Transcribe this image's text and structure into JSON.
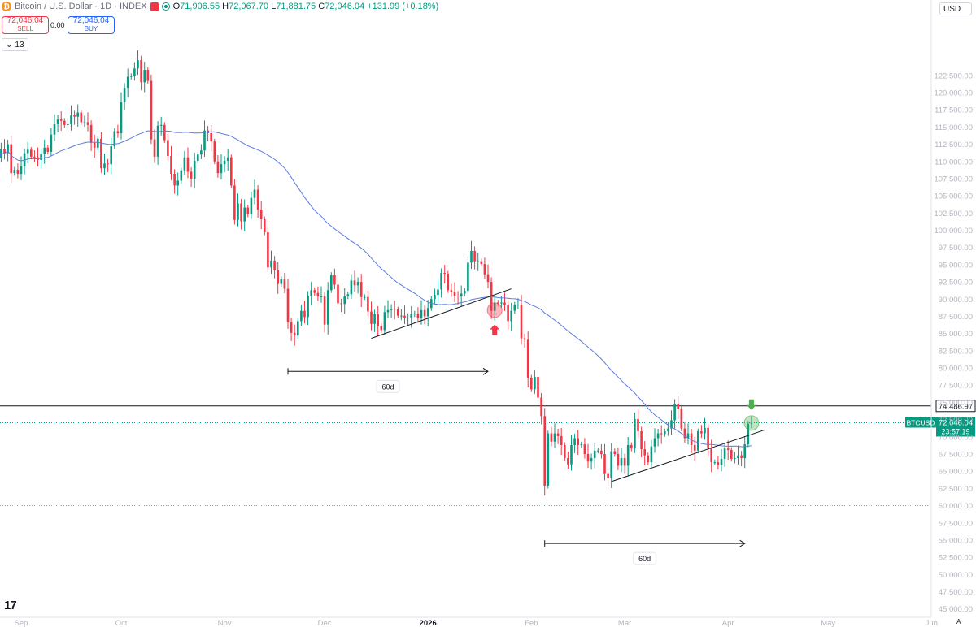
{
  "header": {
    "symbol": "Bitcoin / U.S. Dollar · 1D · INDEX",
    "open_label": "O",
    "open": "71,906.55",
    "high_label": "H",
    "high": "72,067.70",
    "low_label": "L",
    "low": "71,881.75",
    "close_label": "C",
    "close": "72,046.04",
    "change": "+131.99 (+0.18%)",
    "coin_icon": "bitcoin-icon"
  },
  "trade": {
    "sell_price": "72,046.04",
    "sell_label": "SELL",
    "spread": "0.00",
    "buy_price": "72,046.04",
    "buy_label": "BUY"
  },
  "indicator_count": "13",
  "currency": "USD",
  "auto_label": "A",
  "colors": {
    "up": "#089981",
    "down": "#f23645",
    "ma": "#5b7be0",
    "accent": "#2962ff"
  },
  "chart_data": {
    "type": "candlestick",
    "x_ticks": [
      "Sep",
      "Oct",
      "Nov",
      "Dec",
      "2026",
      "Feb",
      "Mar",
      "Apr",
      "May",
      "Jun"
    ],
    "y_ticks": [
      "45,000.00",
      "47,500.00",
      "50,000.00",
      "52,500.00",
      "55,000.00",
      "57,500.00",
      "60,000.00",
      "62,500.00",
      "65,000.00",
      "67,500.00",
      "70,000.00",
      "72,500.00",
      "75,000.00",
      "77,500.00",
      "80,000.00",
      "82,500.00",
      "85,000.00",
      "87,500.00",
      "90,000.00",
      "92,500.00",
      "95,000.00",
      "97,500.00",
      "100,000.00",
      "102,500.00",
      "105,000.00",
      "107,500.00",
      "110,000.00",
      "112,500.00",
      "115,000.00",
      "117,500.00",
      "120,000.00",
      "122,500.00"
    ],
    "ylim": [
      43500,
      126000
    ],
    "close_series": [
      [
        "2025-08-25",
        110500
      ],
      [
        "2025-08-26",
        111800
      ],
      [
        "2025-08-27",
        111200
      ],
      [
        "2025-08-28",
        112500
      ],
      [
        "2025-08-29",
        108300
      ],
      [
        "2025-08-30",
        108800
      ],
      [
        "2025-08-31",
        108200
      ],
      [
        "2025-09-01",
        109300
      ],
      [
        "2025-09-02",
        111200
      ],
      [
        "2025-09-03",
        111700
      ],
      [
        "2025-09-04",
        110700
      ],
      [
        "2025-09-05",
        110600
      ],
      [
        "2025-09-06",
        110200
      ],
      [
        "2025-09-07",
        111100
      ],
      [
        "2025-09-08",
        112000
      ],
      [
        "2025-09-09",
        111400
      ],
      [
        "2025-09-10",
        113900
      ],
      [
        "2025-09-11",
        115400
      ],
      [
        "2025-09-12",
        116100
      ],
      [
        "2025-09-13",
        115900
      ],
      [
        "2025-09-14",
        115300
      ],
      [
        "2025-09-15",
        115400
      ],
      [
        "2025-09-16",
        116700
      ],
      [
        "2025-09-17",
        116500
      ],
      [
        "2025-09-18",
        117100
      ],
      [
        "2025-09-19",
        115700
      ],
      [
        "2025-09-20",
        115700
      ],
      [
        "2025-09-21",
        115300
      ],
      [
        "2025-09-22",
        112700
      ],
      [
        "2025-09-23",
        112000
      ],
      [
        "2025-09-24",
        113300
      ],
      [
        "2025-09-25",
        109000
      ],
      [
        "2025-09-26",
        109700
      ],
      [
        "2025-09-27",
        109600
      ],
      [
        "2025-09-28",
        112200
      ],
      [
        "2025-09-29",
        114400
      ],
      [
        "2025-09-30",
        114100
      ],
      [
        "2025-10-01",
        118600
      ],
      [
        "2025-10-02",
        120700
      ],
      [
        "2025-10-03",
        122300
      ],
      [
        "2025-10-04",
        122400
      ],
      [
        "2025-10-05",
        123500
      ],
      [
        "2025-10-06",
        124700
      ],
      [
        "2025-10-07",
        121500
      ],
      [
        "2025-10-08",
        123300
      ],
      [
        "2025-10-09",
        121700
      ],
      [
        "2025-10-10",
        113200
      ],
      [
        "2025-10-11",
        110700
      ],
      [
        "2025-10-12",
        115200
      ],
      [
        "2025-10-13",
        115300
      ],
      [
        "2025-10-14",
        113100
      ],
      [
        "2025-10-15",
        110800
      ],
      [
        "2025-10-16",
        108200
      ],
      [
        "2025-10-17",
        106500
      ],
      [
        "2025-10-18",
        107200
      ],
      [
        "2025-10-19",
        108700
      ],
      [
        "2025-10-20",
        110600
      ],
      [
        "2025-10-21",
        108500
      ],
      [
        "2025-10-22",
        107500
      ],
      [
        "2025-10-23",
        110100
      ],
      [
        "2025-10-24",
        111000
      ],
      [
        "2025-10-25",
        111600
      ],
      [
        "2025-10-26",
        114500
      ],
      [
        "2025-10-27",
        114100
      ],
      [
        "2025-10-28",
        112900
      ],
      [
        "2025-10-29",
        110000
      ],
      [
        "2025-10-30",
        108300
      ],
      [
        "2025-10-31",
        109600
      ],
      [
        "2025-11-01",
        110100
      ],
      [
        "2025-11-02",
        110600
      ],
      [
        "2025-11-03",
        106500
      ],
      [
        "2025-11-04",
        101500
      ],
      [
        "2025-11-05",
        103900
      ],
      [
        "2025-11-06",
        101300
      ],
      [
        "2025-11-07",
        103300
      ],
      [
        "2025-11-08",
        102300
      ],
      [
        "2025-11-09",
        104700
      ],
      [
        "2025-11-10",
        105900
      ],
      [
        "2025-11-11",
        103000
      ],
      [
        "2025-11-12",
        101600
      ],
      [
        "2025-11-13",
        99700
      ],
      [
        "2025-11-14",
        94600
      ],
      [
        "2025-11-15",
        95600
      ],
      [
        "2025-11-16",
        94200
      ],
      [
        "2025-11-17",
        92200
      ],
      [
        "2025-11-18",
        92900
      ],
      [
        "2025-11-19",
        91500
      ],
      [
        "2025-11-20",
        86600
      ],
      [
        "2025-11-21",
        85100
      ],
      [
        "2025-11-22",
        84700
      ],
      [
        "2025-11-23",
        86800
      ],
      [
        "2025-11-24",
        88300
      ],
      [
        "2025-11-25",
        87400
      ],
      [
        "2025-11-26",
        90500
      ],
      [
        "2025-11-27",
        91300
      ],
      [
        "2025-11-28",
        90900
      ],
      [
        "2025-11-29",
        90400
      ],
      [
        "2025-11-30",
        90400
      ],
      [
        "2025-12-01",
        86300
      ],
      [
        "2025-12-02",
        91300
      ],
      [
        "2025-12-03",
        93500
      ],
      [
        "2025-12-04",
        92100
      ],
      [
        "2025-12-05",
        89400
      ],
      [
        "2025-12-06",
        89300
      ],
      [
        "2025-12-07",
        90400
      ],
      [
        "2025-12-08",
        90700
      ],
      [
        "2025-12-09",
        92700
      ],
      [
        "2025-12-10",
        92000
      ],
      [
        "2025-12-11",
        92500
      ],
      [
        "2025-12-12",
        90300
      ],
      [
        "2025-12-13",
        90300
      ],
      [
        "2025-12-14",
        88200
      ],
      [
        "2025-12-15",
        86400
      ],
      [
        "2025-12-16",
        87800
      ],
      [
        "2025-12-17",
        86100
      ],
      [
        "2025-12-18",
        85500
      ],
      [
        "2025-12-19",
        88100
      ],
      [
        "2025-12-20",
        88400
      ],
      [
        "2025-12-21",
        88600
      ],
      [
        "2025-12-22",
        88500
      ],
      [
        "2025-12-23",
        87600
      ],
      [
        "2025-12-24",
        87600
      ],
      [
        "2025-12-25",
        87300
      ],
      [
        "2025-12-26",
        87300
      ],
      [
        "2025-12-27",
        87800
      ],
      [
        "2025-12-28",
        87900
      ],
      [
        "2025-12-29",
        87200
      ],
      [
        "2025-12-30",
        88400
      ],
      [
        "2025-12-31",
        87500
      ],
      [
        "2026-01-01",
        88700
      ],
      [
        "2026-01-02",
        90000
      ],
      [
        "2026-01-03",
        90600
      ],
      [
        "2026-01-04",
        91400
      ],
      [
        "2026-01-05",
        93800
      ],
      [
        "2026-01-06",
        93700
      ],
      [
        "2026-01-07",
        91300
      ],
      [
        "2026-01-08",
        91000
      ],
      [
        "2026-01-09",
        90500
      ],
      [
        "2026-01-10",
        90400
      ],
      [
        "2026-01-11",
        90800
      ],
      [
        "2026-01-12",
        91200
      ],
      [
        "2026-01-13",
        95300
      ],
      [
        "2026-01-14",
        97000
      ],
      [
        "2026-01-15",
        95500
      ],
      [
        "2026-01-16",
        95500
      ],
      [
        "2026-01-17",
        95100
      ],
      [
        "2026-01-18",
        93600
      ],
      [
        "2026-01-19",
        92500
      ],
      [
        "2026-01-20",
        88300
      ],
      [
        "2026-01-21",
        89500
      ],
      [
        "2026-01-22",
        89400
      ],
      [
        "2026-01-23",
        89500
      ],
      [
        "2026-01-24",
        89200
      ],
      [
        "2026-01-25",
        86800
      ],
      [
        "2026-01-26",
        88300
      ],
      [
        "2026-01-27",
        89200
      ],
      [
        "2026-01-28",
        89200
      ],
      [
        "2026-01-29",
        84300
      ],
      [
        "2026-01-30",
        84100
      ],
      [
        "2026-01-31",
        78600
      ],
      [
        "2026-02-01",
        76900
      ],
      [
        "2026-02-02",
        78700
      ],
      [
        "2026-02-03",
        75700
      ],
      [
        "2026-02-04",
        73000
      ],
      [
        "2026-02-05",
        62900
      ],
      [
        "2026-02-06",
        70500
      ],
      [
        "2026-02-07",
        69300
      ],
      [
        "2026-02-08",
        70500
      ],
      [
        "2026-02-09",
        70100
      ],
      [
        "2026-02-10",
        68800
      ],
      [
        "2026-02-11",
        66900
      ],
      [
        "2026-02-12",
        66000
      ],
      [
        "2026-02-13",
        68800
      ],
      [
        "2026-02-14",
        69800
      ],
      [
        "2026-02-15",
        68800
      ],
      [
        "2026-02-16",
        68900
      ],
      [
        "2026-02-17",
        67500
      ],
      [
        "2026-02-18",
        66400
      ],
      [
        "2026-02-19",
        66900
      ],
      [
        "2026-02-20",
        68000
      ],
      [
        "2026-02-21",
        68000
      ],
      [
        "2026-02-22",
        67500
      ],
      [
        "2026-02-23",
        64600
      ],
      [
        "2026-02-24",
        64000
      ],
      [
        "2026-02-25",
        67900
      ],
      [
        "2026-02-26",
        67500
      ],
      [
        "2026-02-27",
        65800
      ],
      [
        "2026-02-28",
        66900
      ],
      [
        "2026-03-01",
        65800
      ],
      [
        "2026-03-02",
        68800
      ],
      [
        "2026-03-03",
        68300
      ],
      [
        "2026-03-04",
        72600
      ],
      [
        "2026-03-05",
        70800
      ],
      [
        "2026-03-06",
        68200
      ],
      [
        "2026-03-07",
        67300
      ],
      [
        "2026-03-08",
        66300
      ],
      [
        "2026-03-09",
        68600
      ],
      [
        "2026-03-10",
        69800
      ],
      [
        "2026-03-11",
        70500
      ],
      [
        "2026-03-12",
        70400
      ],
      [
        "2026-03-13",
        70800
      ],
      [
        "2026-03-14",
        71200
      ],
      [
        "2026-03-15",
        72400
      ],
      [
        "2026-03-16",
        74800
      ],
      [
        "2026-03-17",
        74000
      ],
      [
        "2026-03-18",
        71200
      ],
      [
        "2026-03-19",
        69800
      ],
      [
        "2026-03-20",
        70500
      ],
      [
        "2026-03-21",
        68800
      ],
      [
        "2026-03-22",
        68000
      ],
      [
        "2026-03-23",
        70800
      ],
      [
        "2026-03-24",
        70500
      ],
      [
        "2026-03-25",
        71300
      ],
      [
        "2026-03-26",
        68400
      ],
      [
        "2026-03-27",
        66300
      ],
      [
        "2026-03-28",
        66300
      ],
      [
        "2026-03-29",
        65900
      ],
      [
        "2026-03-30",
        66800
      ],
      [
        "2026-03-31",
        68300
      ],
      [
        "2026-04-01",
        68100
      ],
      [
        "2026-04-02",
        66800
      ],
      [
        "2026-04-03",
        66900
      ],
      [
        "2026-04-04",
        67300
      ],
      [
        "2026-04-05",
        66900
      ],
      [
        "2026-04-06",
        68900
      ],
      [
        "2026-04-07",
        71900
      ],
      [
        "2026-04-08",
        72046.04
      ]
    ],
    "moving_average_color": "#5b7be0",
    "horizontal_levels": [
      {
        "value": 74486.97,
        "label": "74,486.97"
      },
      {
        "value": 60000,
        "label": ""
      }
    ],
    "last_price": {
      "label": "BTCUSD",
      "value": "72,046.04",
      "countdown": "23:57:19"
    },
    "trend_lines": [
      {
        "from": [
          "2025-12-15",
          84300
        ],
        "to": [
          "2026-01-26",
          91500
        ]
      },
      {
        "from": [
          "2026-02-25",
          63500
        ],
        "to": [
          "2026-04-12",
          71000
        ]
      }
    ],
    "measure_annotations": [
      {
        "from": "2025-11-20",
        "to": "2026-01-19",
        "y": 79500,
        "label": "60d"
      },
      {
        "from": "2026-02-05",
        "to": "2026-04-06",
        "y": 54500,
        "label": "60d"
      }
    ],
    "markers": [
      {
        "date": "2026-01-21",
        "price": 88400,
        "type": "circle",
        "color": "#f23645"
      },
      {
        "date": "2026-01-21",
        "price": 85600,
        "type": "arrow-up",
        "color": "#f23645"
      },
      {
        "date": "2026-04-08",
        "price": 72000,
        "type": "circle",
        "color": "#4caf50"
      },
      {
        "date": "2026-04-08",
        "price": 74600,
        "type": "arrow-down",
        "color": "#4caf50"
      }
    ]
  }
}
